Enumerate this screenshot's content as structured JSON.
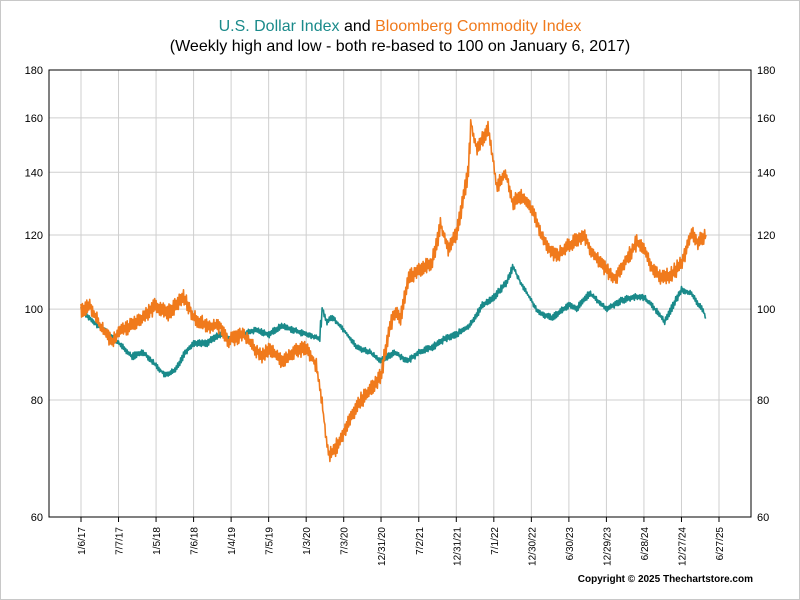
{
  "chart_data": {
    "type": "line",
    "title": {
      "series_a_name": "U.S. Dollar Index",
      "connector": "and",
      "series_b_name": "Bloomberg Commodity Index",
      "subtitle": "(Weekly high and low - both re-based to 100 on January 6, 2017)"
    },
    "y_scale": "log",
    "ylim": [
      60,
      180
    ],
    "y_ticks": [
      60,
      80,
      100,
      120,
      140,
      160,
      180
    ],
    "x_tick_labels": [
      "1/6/17",
      "7/7/17",
      "1/5/18",
      "7/6/18",
      "1/4/19",
      "7/5/19",
      "1/3/20",
      "7/3/20",
      "12/31/20",
      "7/2/21",
      "12/31/21",
      "7/1/22",
      "12/30/22",
      "6/30/23",
      "12/29/23",
      "6/28/24",
      "12/27/24",
      "6/27/25"
    ],
    "grid": true,
    "series": [
      {
        "name": "U.S. Dollar Index",
        "color": "#1a8a8a",
        "points": [
          [
            "1/6/17",
            100
          ],
          [
            "3/1/17",
            97
          ],
          [
            "5/1/17",
            95
          ],
          [
            "7/7/17",
            92
          ],
          [
            "9/8/17",
            89
          ],
          [
            "11/3/17",
            90
          ],
          [
            "1/5/18",
            87
          ],
          [
            "2/16/18",
            85
          ],
          [
            "4/6/18",
            86
          ],
          [
            "5/25/18",
            90
          ],
          [
            "7/6/18",
            92
          ],
          [
            "9/7/18",
            92
          ],
          [
            "11/9/18",
            94
          ],
          [
            "1/4/19",
            93
          ],
          [
            "3/1/19",
            94
          ],
          [
            "5/3/19",
            95
          ],
          [
            "7/5/19",
            94
          ],
          [
            "9/6/19",
            96
          ],
          [
            "11/1/19",
            95
          ],
          [
            "1/3/20",
            94
          ],
          [
            "3/6/20",
            93
          ],
          [
            "3/20/20",
            100
          ],
          [
            "4/10/20",
            97
          ],
          [
            "5/8/20",
            98
          ],
          [
            "7/3/20",
            95
          ],
          [
            "9/4/20",
            91
          ],
          [
            "11/6/20",
            90
          ],
          [
            "12/31/20",
            88
          ],
          [
            "3/5/21",
            90
          ],
          [
            "5/7/21",
            88
          ],
          [
            "7/2/21",
            90
          ],
          [
            "9/3/21",
            91
          ],
          [
            "11/5/21",
            93
          ],
          [
            "12/31/21",
            94
          ],
          [
            "3/4/22",
            96
          ],
          [
            "5/6/22",
            101
          ],
          [
            "7/1/22",
            103
          ],
          [
            "9/2/22",
            107
          ],
          [
            "9/30/22",
            111
          ],
          [
            "11/4/22",
            107
          ],
          [
            "12/30/22",
            102
          ],
          [
            "2/3/23",
            99
          ],
          [
            "4/7/23",
            98
          ],
          [
            "6/30/23",
            101
          ],
          [
            "8/4/23",
            100
          ],
          [
            "10/6/23",
            104
          ],
          [
            "12/29/23",
            100
          ],
          [
            "3/1/24",
            102
          ],
          [
            "5/3/24",
            103
          ],
          [
            "6/28/24",
            103
          ],
          [
            "9/6/24",
            99
          ],
          [
            "10/4/24",
            97
          ],
          [
            "12/27/24",
            105
          ],
          [
            "2/7/25",
            104
          ],
          [
            "4/4/25",
            100
          ],
          [
            "4/25/25",
            98
          ]
        ]
      },
      {
        "name": "Bloomberg Commodity Index",
        "color": "#f07a1c",
        "points": [
          [
            "1/6/17",
            100
          ],
          [
            "2/17/17",
            101
          ],
          [
            "4/7/17",
            96
          ],
          [
            "6/9/17",
            92
          ],
          [
            "7/7/17",
            95
          ],
          [
            "9/8/17",
            96
          ],
          [
            "11/3/17",
            98
          ],
          [
            "1/5/18",
            101
          ],
          [
            "3/2/18",
            99
          ],
          [
            "5/18/18",
            103
          ],
          [
            "7/6/18",
            98
          ],
          [
            "9/7/18",
            96
          ],
          [
            "11/9/18",
            96
          ],
          [
            "12/21/18",
            92
          ],
          [
            "1/4/19",
            93
          ],
          [
            "3/1/19",
            94
          ],
          [
            "5/31/19",
            89
          ],
          [
            "7/5/19",
            91
          ],
          [
            "9/6/19",
            88
          ],
          [
            "11/1/19",
            90
          ],
          [
            "1/3/20",
            91
          ],
          [
            "2/21/20",
            87
          ],
          [
            "3/20/20",
            79
          ],
          [
            "4/10/20",
            72
          ],
          [
            "4/24/20",
            70
          ],
          [
            "5/22/20",
            71
          ],
          [
            "7/3/20",
            74
          ],
          [
            "9/4/20",
            79
          ],
          [
            "11/6/20",
            82
          ],
          [
            "12/31/20",
            85
          ],
          [
            "2/5/21",
            95
          ],
          [
            "3/5/21",
            99
          ],
          [
            "4/2/21",
            98
          ],
          [
            "5/14/21",
            108
          ],
          [
            "7/2/21",
            110
          ],
          [
            "9/3/21",
            112
          ],
          [
            "10/15/21",
            123
          ],
          [
            "11/19/21",
            116
          ],
          [
            "12/31/21",
            120
          ],
          [
            "2/25/22",
            140
          ],
          [
            "3/11/22",
            158
          ],
          [
            "4/8/22",
            148
          ],
          [
            "6/3/22",
            156
          ],
          [
            "7/15/22",
            135
          ],
          [
            "8/26/22",
            140
          ],
          [
            "9/30/22",
            130
          ],
          [
            "11/11/22",
            132
          ],
          [
            "12/30/22",
            128
          ],
          [
            "2/3/23",
            122
          ],
          [
            "3/17/23",
            116
          ],
          [
            "5/5/23",
            114
          ],
          [
            "6/30/23",
            117
          ],
          [
            "9/8/23",
            120
          ],
          [
            "10/20/23",
            115
          ],
          [
            "12/29/23",
            110
          ],
          [
            "2/9/24",
            108
          ],
          [
            "4/5/24",
            113
          ],
          [
            "5/24/24",
            118
          ],
          [
            "6/28/24",
            116
          ],
          [
            "8/9/24",
            110
          ],
          [
            "9/20/24",
            108
          ],
          [
            "11/8/24",
            109
          ],
          [
            "12/27/24",
            112
          ],
          [
            "2/14/25",
            121
          ],
          [
            "3/14/25",
            118
          ],
          [
            "4/25/25",
            120
          ]
        ]
      }
    ]
  },
  "copyright": "Copyright © 2025 Thechartstore.com"
}
